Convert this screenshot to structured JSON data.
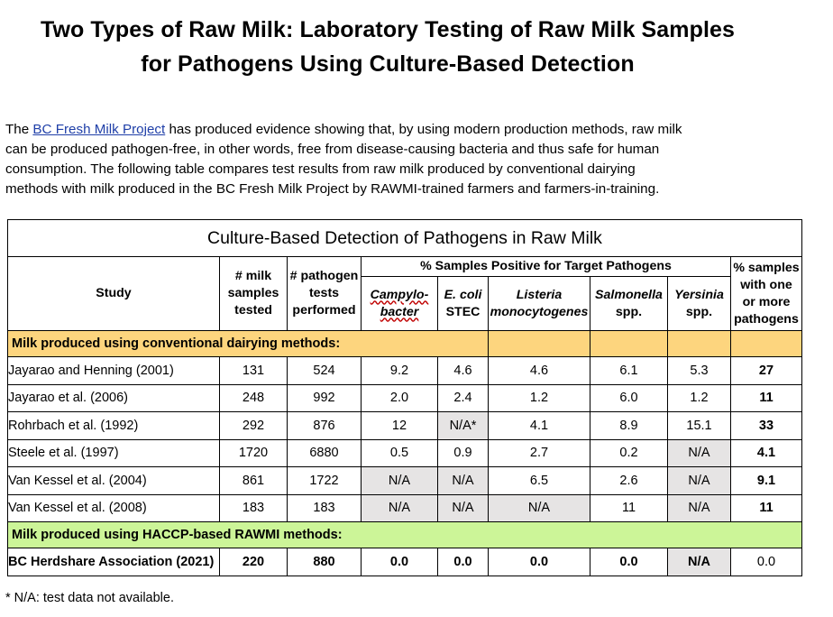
{
  "title": {
    "line1": "Two Types of Raw Milk: Laboratory Testing of Raw Milk Samples",
    "line2": "for Pathogens Using Culture-Based Detection"
  },
  "intro": {
    "line1_prefix": "The ",
    "link": "BC Fresh Milk Project",
    "line1_suffix": " has produced evidence showing that, by using modern production methods, raw milk",
    "line2": "can be produced pathogen-free, in other words, free from disease-causing bacteria and thus safe for human",
    "line3": "consumption.  The following table compares test results from raw milk produced by conventional dairying",
    "line4": "methods with milk produced in the BC Fresh Milk Project by RAWMI-trained farmers and farmers-in-training."
  },
  "table": {
    "caption": "Culture-Based Detection of Pathogens in Raw Milk",
    "headers": {
      "study": "Study",
      "samples": [
        "# milk",
        "samples",
        "tested"
      ],
      "tests": [
        "# pathogen",
        "tests",
        "performed"
      ],
      "percent_group": "% Samples Positive for Target Pathogens",
      "campylo": [
        "Campylo-",
        "bacter"
      ],
      "ecoli": [
        "E. coli",
        "STEC"
      ],
      "listeria": [
        "Listeria",
        "monocytogenes"
      ],
      "salmonella": [
        "Salmonella",
        "spp."
      ],
      "yersinia": [
        "Yersinia",
        "spp."
      ],
      "any": [
        "% samples",
        "with one",
        "or more",
        "pathogens"
      ]
    },
    "group_conventional": "Milk produced using conventional dairying methods:",
    "conventional_rows": [
      {
        "study": "Jayarao and Henning (2001)",
        "samples": "131",
        "tests": "524",
        "campylo": "9.2",
        "ecoli": "4.6",
        "listeria": "4.6",
        "salmonella": "6.1",
        "yersinia": "5.3",
        "any": "27"
      },
      {
        "study": "Jayarao et al. (2006)",
        "samples": "248",
        "tests": "992",
        "campylo": "2.0",
        "ecoli": "2.4",
        "listeria": "1.2",
        "salmonella": "6.0",
        "yersinia": "1.2",
        "any": "11"
      },
      {
        "study": "Rohrbach et al. (1992)",
        "samples": "292",
        "tests": "876",
        "campylo": "12",
        "ecoli": "N/A*",
        "listeria": "4.1",
        "salmonella": "8.9",
        "yersinia": "15.1",
        "any": "33"
      },
      {
        "study": "Steele et al. (1997)",
        "samples": "1720",
        "tests": "6880",
        "campylo": "0.5",
        "ecoli": "0.9",
        "listeria": "2.7",
        "salmonella": "0.2",
        "yersinia": "N/A",
        "any": "4.1"
      },
      {
        "study": "Van Kessel et al. (2004)",
        "samples": "861",
        "tests": "1722",
        "campylo": "N/A",
        "ecoli": "N/A",
        "listeria": "6.5",
        "salmonella": "2.6",
        "yersinia": "N/A",
        "any": "9.1"
      },
      {
        "study": "Van Kessel et al. (2008)",
        "samples": "183",
        "tests": "183",
        "campylo": "N/A",
        "ecoli": "N/A",
        "listeria": "N/A",
        "salmonella": "11",
        "yersinia": "N/A",
        "any": "11"
      }
    ],
    "group_rawmi": "Milk produced using HACCP-based RAWMI methods:",
    "rawmi_rows": [
      {
        "study": "BC Herdshare Association (2021)",
        "samples": "220",
        "tests": "880",
        "campylo": "0.0",
        "ecoli": "0.0",
        "listeria": "0.0",
        "salmonella": "0.0",
        "yersinia": "N/A",
        "any": "0.0"
      }
    ]
  },
  "footnote": "* N/A:  test data not available.",
  "colors": {
    "conventional_band": "#fdd57e",
    "rawmi_band": "#ccf598",
    "na_cell": "#e6e4e4",
    "link": "#1f3fa8"
  }
}
